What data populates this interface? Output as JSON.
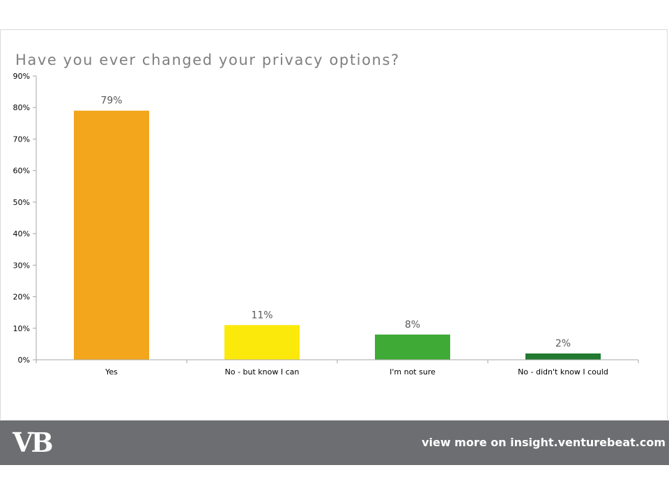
{
  "chart_data": {
    "type": "bar",
    "title": "Have you ever changed your privacy options?",
    "categories": [
      "Yes",
      "No - but know I can",
      "I'm not sure",
      "No - didn't know I could"
    ],
    "values": [
      79,
      11,
      8,
      2
    ],
    "data_labels": [
      "79%",
      "11%",
      "8%",
      "2%"
    ],
    "colors": [
      "#f3a51b",
      "#fce90c",
      "#40aa37",
      "#217a30"
    ],
    "ylim": [
      0,
      90
    ],
    "y_ticks": [
      "0%",
      "10%",
      "20%",
      "30%",
      "40%",
      "50%",
      "60%",
      "70%",
      "80%",
      "90%"
    ],
    "xlabel": "",
    "ylabel": "",
    "grid": false,
    "legend": "none"
  },
  "footer": {
    "logo_text": "VB",
    "link_text": "view more on insight.venturebeat.com",
    "background": "#6d6e71"
  }
}
